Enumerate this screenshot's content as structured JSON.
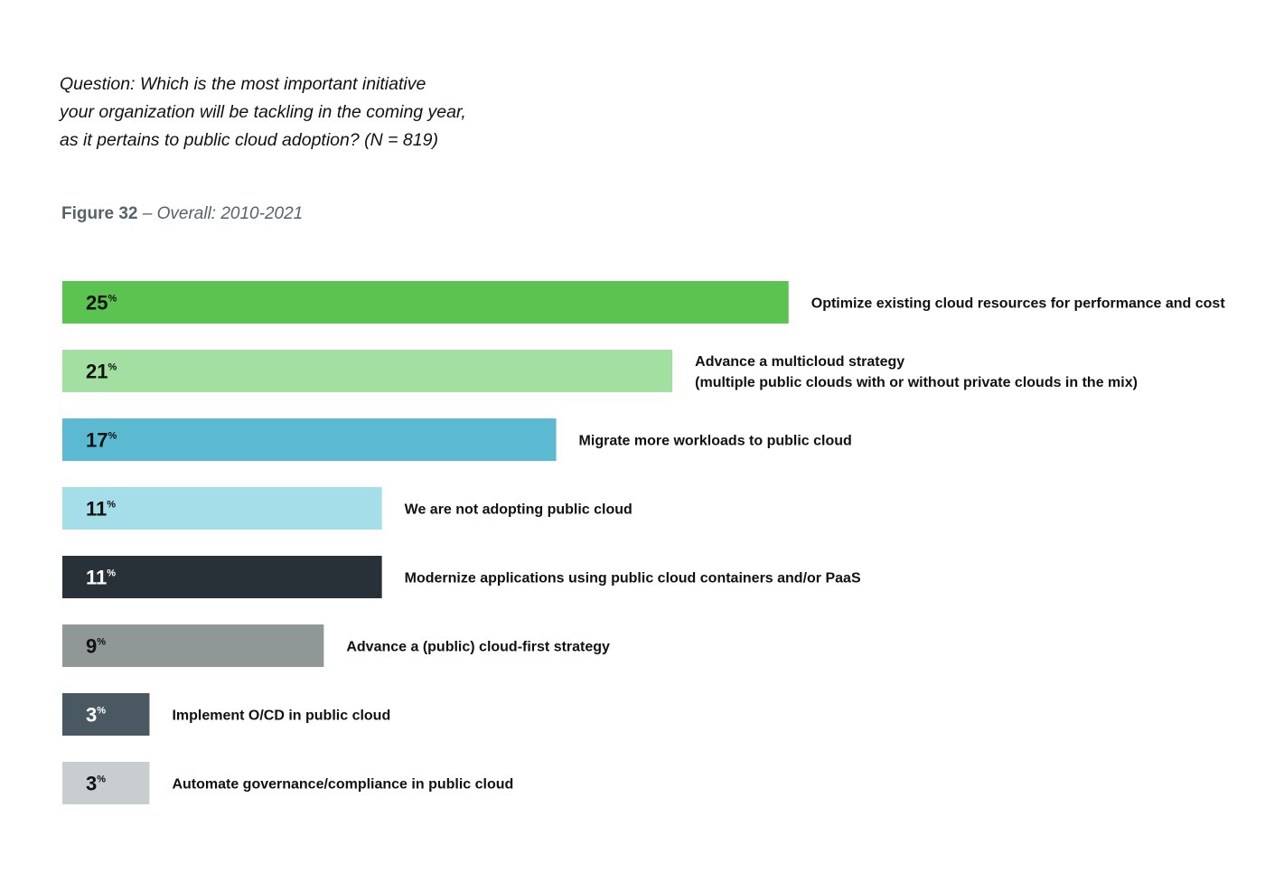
{
  "question_lines": [
    "Question: Which is the most important initiative",
    "your organization will be tackling in the coming year,",
    "as it pertains to public cloud adoption? (N = 819)"
  ],
  "figure": {
    "number": "Figure 32",
    "separator": " – ",
    "subtitle": "Overall: 2010-2021"
  },
  "chart_data": {
    "type": "bar",
    "orientation": "horizontal",
    "unit_suffix": "%",
    "xlim": [
      0,
      25
    ],
    "grid": false,
    "legend": "none",
    "bars": [
      {
        "value": 25,
        "label_lines": [
          "Optimize existing cloud resources for performance and cost"
        ],
        "color": "#5bc450",
        "text_color": "#111111"
      },
      {
        "value": 21,
        "label_lines": [
          "Advance a multicloud strategy",
          "(multiple public clouds with or without private clouds in the mix)"
        ],
        "color": "#a3dfa1",
        "text_color": "#111111"
      },
      {
        "value": 17,
        "label_lines": [
          "Migrate more workloads to public cloud"
        ],
        "color": "#5bbad1",
        "text_color": "#111111"
      },
      {
        "value": 11,
        "label_lines": [
          "We are not adopting public cloud"
        ],
        "color": "#a5dde8",
        "text_color": "#111111"
      },
      {
        "value": 11,
        "label_lines": [
          "Modernize applications using public cloud containers and/or PaaS"
        ],
        "color": "#283038",
        "text_color": "#ffffff"
      },
      {
        "value": 9,
        "label_lines": [
          "Advance a (public) cloud-first strategy"
        ],
        "color": "#909797",
        "text_color": "#111111"
      },
      {
        "value": 3,
        "label_lines": [
          "Implement O/CD in public cloud"
        ],
        "color": "#4a5961",
        "text_color": "#ffffff"
      },
      {
        "value": 3,
        "label_lines": [
          "Automate governance/compliance in public cloud"
        ],
        "color": "#c8cdd0",
        "text_color": "#111111"
      }
    ]
  }
}
